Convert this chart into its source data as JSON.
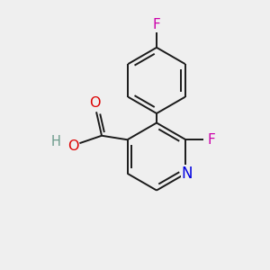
{
  "background_color": "#efefef",
  "bond_color": "#1a1a1a",
  "bond_width": 1.4,
  "atom_colors": {
    "C": "#1a1a1a",
    "N": "#0000e0",
    "O": "#dd0000",
    "F": "#cc00aa",
    "H": "#6a9a8a"
  },
  "figsize": [
    3.0,
    3.0
  ],
  "dpi": 100,
  "xlim": [
    0,
    10
  ],
  "ylim": [
    0,
    10
  ],
  "font_size": 10.5
}
